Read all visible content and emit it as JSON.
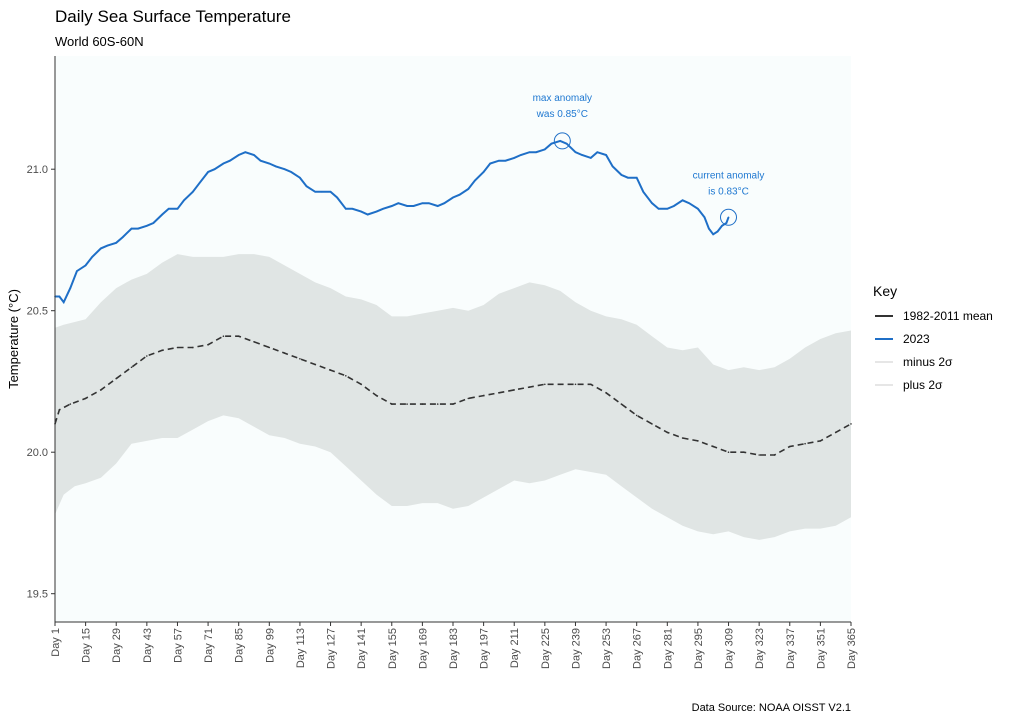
{
  "chart_data": {
    "type": "line",
    "title": "Daily Sea Surface Temperature",
    "subtitle": "World 60S-60N",
    "xlabel": "",
    "ylabel": "Temperature (°C)",
    "caption": "Data Source: NOAA OISST V2.1",
    "xlim": [
      1,
      365
    ],
    "ylim": [
      19.4,
      21.4
    ],
    "x_ticks": [
      1,
      15,
      29,
      43,
      57,
      71,
      85,
      99,
      113,
      127,
      141,
      155,
      169,
      183,
      197,
      211,
      225,
      239,
      253,
      267,
      281,
      295,
      309,
      323,
      337,
      351,
      365
    ],
    "x_tick_labels": [
      "Day 1",
      "Day 15",
      "Day 29",
      "Day 43",
      "Day 57",
      "Day 71",
      "Day 85",
      "Day 99",
      "Day 113",
      "Day 127",
      "Day 141",
      "Day 155",
      "Day 169",
      "Day 183",
      "Day 197",
      "Day 211",
      "Day 225",
      "Day 239",
      "Day 253",
      "Day 267",
      "Day 281",
      "Day 295",
      "Day 309",
      "Day 323",
      "Day 337",
      "Day 351",
      "Day 365"
    ],
    "y_ticks": [
      19.5,
      20.0,
      20.5,
      21.0
    ],
    "y_tick_labels": [
      "19.5",
      "20.0",
      "20.5",
      "21.0"
    ],
    "grid": false,
    "legend": {
      "title": "Key",
      "placement": "right",
      "entries": [
        {
          "label": "1982-2011 mean",
          "color": "#333333"
        },
        {
          "label": "2023",
          "color": "#1f6fc7"
        },
        {
          "label": "minus 2σ",
          "color": "#e6e6e6"
        },
        {
          "label": "plus 2σ",
          "color": "#e6e6e6"
        }
      ]
    },
    "colors": {
      "panel": "#f9fdfd",
      "band": "#e0e5e4",
      "mean": "#333333",
      "series_2023": "#1f6fc7",
      "annotation": "#1f78d1"
    },
    "series": [
      {
        "name": "1982-2011 mean",
        "style": "dashed",
        "x": [
          1,
          3,
          8,
          15,
          22,
          29,
          36,
          43,
          50,
          57,
          64,
          71,
          78,
          85,
          92,
          99,
          106,
          113,
          120,
          127,
          134,
          141,
          148,
          155,
          162,
          169,
          176,
          183,
          190,
          197,
          204,
          211,
          218,
          225,
          232,
          239,
          246,
          253,
          260,
          267,
          274,
          281,
          288,
          295,
          302,
          309,
          316,
          323,
          330,
          337,
          344,
          351,
          358,
          365
        ],
        "y": [
          20.1,
          20.15,
          20.17,
          20.19,
          20.22,
          20.26,
          20.3,
          20.34,
          20.36,
          20.37,
          20.37,
          20.38,
          20.41,
          20.41,
          20.39,
          20.37,
          20.35,
          20.33,
          20.31,
          20.29,
          20.27,
          20.24,
          20.2,
          20.17,
          20.17,
          20.17,
          20.17,
          20.17,
          20.19,
          20.2,
          20.21,
          20.22,
          20.23,
          20.24,
          20.24,
          20.24,
          20.24,
          20.21,
          20.17,
          20.13,
          20.1,
          20.07,
          20.05,
          20.04,
          20.02,
          20.0,
          20.0,
          19.99,
          19.99,
          20.02,
          20.03,
          20.04,
          20.07,
          20.1
        ]
      },
      {
        "name": "2023",
        "style": "solid",
        "x": [
          1,
          3,
          5,
          8,
          11,
          15,
          18,
          22,
          25,
          29,
          32,
          36,
          39,
          43,
          46,
          50,
          53,
          57,
          60,
          64,
          67,
          71,
          74,
          78,
          81,
          85,
          88,
          92,
          95,
          99,
          102,
          106,
          109,
          113,
          116,
          120,
          123,
          127,
          130,
          134,
          137,
          141,
          144,
          148,
          151,
          155,
          158,
          162,
          165,
          169,
          172,
          176,
          179,
          183,
          186,
          190,
          193,
          197,
          200,
          204,
          207,
          211,
          214,
          218,
          221,
          225,
          228,
          232,
          235,
          239,
          242,
          246,
          249,
          253,
          256,
          260,
          263,
          267,
          270,
          274,
          277,
          281,
          284,
          288,
          291,
          295,
          298,
          300,
          302,
          304,
          306,
          308,
          309
        ],
        "y": [
          20.55,
          20.55,
          20.53,
          20.58,
          20.64,
          20.66,
          20.69,
          20.72,
          20.73,
          20.74,
          20.76,
          20.79,
          20.79,
          20.8,
          20.81,
          20.84,
          20.86,
          20.86,
          20.89,
          20.92,
          20.95,
          20.99,
          21.0,
          21.02,
          21.03,
          21.05,
          21.06,
          21.05,
          21.03,
          21.02,
          21.01,
          21.0,
          20.99,
          20.97,
          20.94,
          20.92,
          20.92,
          20.92,
          20.9,
          20.86,
          20.86,
          20.85,
          20.84,
          20.85,
          20.86,
          20.87,
          20.88,
          20.87,
          20.87,
          20.88,
          20.88,
          20.87,
          20.88,
          20.9,
          20.91,
          20.93,
          20.96,
          20.99,
          21.02,
          21.03,
          21.03,
          21.04,
          21.05,
          21.06,
          21.06,
          21.07,
          21.09,
          21.1,
          21.09,
          21.06,
          21.05,
          21.04,
          21.06,
          21.05,
          21.01,
          20.98,
          20.97,
          20.97,
          20.92,
          20.88,
          20.86,
          20.86,
          20.87,
          20.89,
          20.88,
          20.86,
          20.83,
          20.79,
          20.77,
          20.78,
          20.8,
          20.81,
          20.83
        ]
      }
    ],
    "band": {
      "name": "±2σ",
      "x": [
        1,
        5,
        10,
        15,
        22,
        29,
        36,
        43,
        50,
        57,
        64,
        71,
        78,
        85,
        92,
        99,
        106,
        113,
        120,
        127,
        134,
        141,
        148,
        155,
        162,
        169,
        176,
        183,
        190,
        197,
        204,
        211,
        218,
        225,
        232,
        239,
        246,
        253,
        260,
        267,
        274,
        281,
        288,
        295,
        302,
        309,
        316,
        323,
        330,
        337,
        344,
        351,
        358,
        365
      ],
      "lower": [
        19.78,
        19.85,
        19.88,
        19.89,
        19.91,
        19.96,
        20.03,
        20.04,
        20.05,
        20.05,
        20.08,
        20.11,
        20.13,
        20.12,
        20.09,
        20.06,
        20.05,
        20.03,
        20.02,
        20.0,
        19.95,
        19.9,
        19.85,
        19.81,
        19.81,
        19.82,
        19.82,
        19.8,
        19.81,
        19.84,
        19.87,
        19.9,
        19.89,
        19.9,
        19.92,
        19.94,
        19.93,
        19.92,
        19.88,
        19.84,
        19.8,
        19.77,
        19.74,
        19.72,
        19.71,
        19.72,
        19.7,
        19.69,
        19.7,
        19.72,
        19.73,
        19.73,
        19.74,
        19.77
      ],
      "upper": [
        20.44,
        20.45,
        20.46,
        20.47,
        20.53,
        20.58,
        20.61,
        20.63,
        20.67,
        20.7,
        20.69,
        20.69,
        20.69,
        20.7,
        20.7,
        20.69,
        20.66,
        20.63,
        20.6,
        20.58,
        20.55,
        20.54,
        20.52,
        20.48,
        20.48,
        20.49,
        20.5,
        20.51,
        20.5,
        20.52,
        20.56,
        20.58,
        20.6,
        20.59,
        20.57,
        20.53,
        20.5,
        20.48,
        20.47,
        20.45,
        20.41,
        20.37,
        20.36,
        20.37,
        20.31,
        20.29,
        20.3,
        20.29,
        20.3,
        20.33,
        20.37,
        20.4,
        20.42,
        20.43
      ]
    },
    "annotations": [
      {
        "label_line1": "max anomaly",
        "label_line2": "was 0.85°C",
        "x": 233,
        "y": 21.1
      },
      {
        "label_line1": "current anomaly",
        "label_line2": "is 0.83°C",
        "x": 309,
        "y": 20.83
      }
    ]
  }
}
